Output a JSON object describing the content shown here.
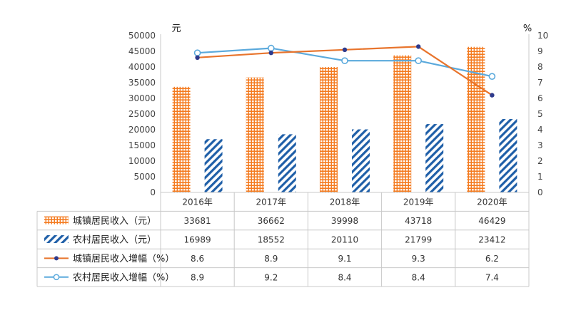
{
  "chart_data": {
    "type": "bar",
    "categories": [
      "2016年",
      "2017年",
      "2018年",
      "2019年",
      "2020年"
    ],
    "series": [
      {
        "name": "城镇居民收入（元）",
        "kind": "bar",
        "axis": "left",
        "color": "#f47b20",
        "pattern": "brick",
        "values": [
          33681,
          36662,
          39998,
          43718,
          46429
        ]
      },
      {
        "name": "农村居民收入（元）",
        "kind": "bar",
        "axis": "left",
        "color": "#1f5fa8",
        "pattern": "hatch",
        "values": [
          16989,
          18552,
          20110,
          21799,
          23412
        ]
      },
      {
        "name": "城镇居民收入增幅（%）",
        "kind": "line",
        "axis": "right",
        "color": "#e8742c",
        "marker_color": "#2e3a8c",
        "values": [
          8.6,
          8.9,
          9.1,
          9.3,
          6.2
        ]
      },
      {
        "name": "农村居民收入增幅（%）",
        "kind": "line",
        "axis": "right",
        "color": "#5aa9dc",
        "marker_color": "#5aa9dc",
        "values": [
          8.9,
          9.2,
          8.4,
          8.4,
          7.4
        ]
      }
    ],
    "table_values": [
      [
        "33681",
        "36662",
        "39998",
        "43718",
        "46429"
      ],
      [
        "16989",
        "18552",
        "20110",
        "21799",
        "23412"
      ],
      [
        "8.6",
        "8.9",
        "9.1",
        "9.3",
        "6.2"
      ],
      [
        "8.9",
        "9.2",
        "8.4",
        "8.4",
        "7.4"
      ]
    ],
    "y_left": {
      "unit": "元",
      "ylim": [
        0,
        50000
      ],
      "ticks": [
        "0",
        "5000",
        "10000",
        "15000",
        "20000",
        "25000",
        "30000",
        "35000",
        "40000",
        "45000",
        "50000"
      ]
    },
    "y_right": {
      "unit": "%",
      "ylim": [
        0,
        10
      ],
      "ticks": [
        "0",
        "1",
        "2",
        "3",
        "4",
        "5",
        "6",
        "7",
        "8",
        "9",
        "10"
      ]
    },
    "grid": false,
    "legend": "data-table-left"
  }
}
